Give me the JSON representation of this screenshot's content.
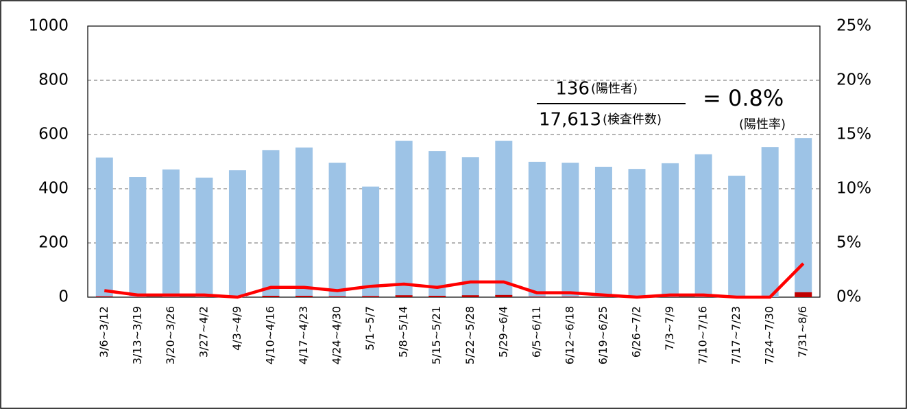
{
  "chart_data": {
    "type": "bar-line",
    "categories": [
      "3/6~3/12",
      "3/13~3/19",
      "3/20~3/26",
      "3/27~4/2",
      "4/3~4/9",
      "4/10~4/16",
      "4/17~4/23",
      "4/24~4/30",
      "5/1~5/7",
      "5/8~5/14",
      "5/15~5/21",
      "5/22~5/28",
      "5/29~6/4",
      "6/5~6/11",
      "6/12~6/18",
      "6/19~6/25",
      "6/26~7/2",
      "7/3~7/9",
      "7/10~7/16",
      "7/17~7/23",
      "7/24~7/30",
      "7/31~8/6"
    ],
    "series": [
      {
        "type": "bar",
        "color": "#9dc3e6",
        "values": [
          515,
          443,
          471,
          441,
          468,
          542,
          552,
          496,
          408,
          577,
          539,
          516,
          577,
          499,
          496,
          481,
          473,
          494,
          527,
          448,
          554,
          587
        ]
      },
      {
        "type": "bar",
        "color": "#c00000",
        "values": [
          3,
          1,
          1,
          1,
          0,
          5,
          5,
          3,
          4,
          7,
          5,
          7,
          8,
          2,
          2,
          1,
          0,
          1,
          1,
          0,
          0,
          18
        ]
      },
      {
        "type": "line",
        "axis": "y2",
        "color": "#ff0000",
        "values": [
          0.6,
          0.2,
          0.2,
          0.2,
          0,
          0.9,
          0.9,
          0.6,
          1.0,
          1.2,
          0.9,
          1.4,
          1.4,
          0.4,
          0.4,
          0.2,
          0,
          0.2,
          0.2,
          0,
          0,
          3.1
        ]
      }
    ],
    "ylim": [
      0,
      1000
    ],
    "yticks": [
      0,
      200,
      400,
      600,
      800,
      1000
    ],
    "y2lim": [
      0,
      25
    ],
    "y2ticks": [
      {
        "value": 0,
        "label": "0%"
      },
      {
        "value": 5,
        "label": "5%"
      },
      {
        "value": 10,
        "label": "10%"
      },
      {
        "value": 15,
        "label": "15%"
      },
      {
        "value": 20,
        "label": "20%"
      },
      {
        "value": 25,
        "label": "25%"
      }
    ],
    "grid": true,
    "annotation": {
      "numerator": "136",
      "numerator_label": "(陽性者)",
      "denominator": "17,613",
      "denominator_label": "(検査件数)",
      "result": "= 0.8%",
      "result_label": "(陽性率)"
    }
  }
}
